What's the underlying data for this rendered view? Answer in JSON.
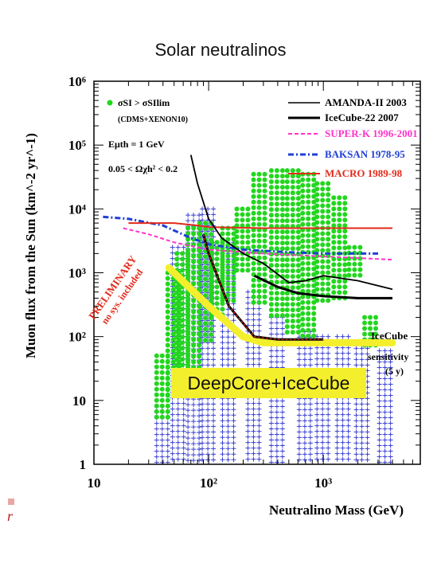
{
  "title": "Solar neutralinos",
  "colors": {
    "amanda": "#000000",
    "icecube22": "#000000",
    "superk": "#ff33cc",
    "baksan": "#1f3fd8",
    "macro": "#e32a1a",
    "model_green": "#22d61e",
    "model_blue": "#3a3fd0",
    "sensitivity": "#f4ef2c",
    "preliminary": "#e32a1a"
  },
  "labels": {
    "condition_1": "σSI > σSIlim",
    "condition_1_sub": "(CDMS+XENON10)",
    "threshold": "Eμth = 1 GeV",
    "omega": "0.05 < Ωχh² < 0.2",
    "preliminary": "PRELIMINARY",
    "no_sys": "no sys. included",
    "icecube_sens_1": "IceCube",
    "icecube_sens_2": "sensitivity",
    "icecube_sens_3": "(5 y)",
    "deepcore": "DeepCore+IceCube",
    "corner_letter": "r"
  },
  "chart_data": {
    "type": "line",
    "title": "Solar neutralinos",
    "xlabel": "Neutralino Mass (GeV)",
    "ylabel": "Muon flux from the Sun (km^-2 yr^-1)",
    "xscale": "log",
    "yscale": "log",
    "xlim": [
      10,
      7000
    ],
    "ylim": [
      1,
      1000000
    ],
    "xticks": [
      "10",
      "10²",
      "10³"
    ],
    "yticks": [
      "1",
      "10",
      "10²",
      "10³",
      "10⁴",
      "10⁵",
      "10⁶"
    ],
    "legend_position": "top-right",
    "series": [
      {
        "name": "AMANDA-II 2003",
        "style": "solid-thin",
        "x": [
          70,
          80,
          100,
          130,
          200,
          300,
          500,
          700,
          1000,
          2000,
          4000
        ],
        "y": [
          70000,
          25000,
          7000,
          3500,
          2000,
          1400,
          700,
          750,
          900,
          750,
          550
        ]
      },
      {
        "name": "IceCube-22 2007",
        "style": "solid-thick",
        "x": [
          250,
          400,
          600,
          1000,
          2000,
          4000
        ],
        "y": [
          900,
          600,
          480,
          430,
          400,
          400
        ]
      },
      {
        "name": "SUPER-K 1996-2001",
        "style": "dashed",
        "x": [
          18,
          30,
          50,
          100,
          300,
          1000,
          4000
        ],
        "y": [
          5000,
          4000,
          3000,
          2300,
          2000,
          1800,
          1600
        ]
      },
      {
        "name": "BAKSAN 1978-95",
        "style": "dash-dot",
        "x": [
          12,
          20,
          40,
          70,
          100,
          200,
          500,
          1000,
          3000
        ],
        "y": [
          7500,
          7000,
          5500,
          3500,
          2800,
          2300,
          2100,
          2000,
          2000
        ]
      },
      {
        "name": "MACRO 1989-98",
        "style": "solid-red",
        "x": [
          20,
          50,
          80,
          100,
          300,
          1000,
          4000
        ],
        "y": [
          6000,
          6000,
          5500,
          5200,
          5000,
          5000,
          5000
        ]
      },
      {
        "name": "IceCube sensitivity (5 y)",
        "style": "thick-yellow",
        "x": [
          45,
          100,
          200,
          300,
          1000,
          4000
        ],
        "y": [
          1200,
          300,
          100,
          80,
          80,
          80
        ]
      },
      {
        "name": "DeepCore+IceCube",
        "style": "red-over-black",
        "x": [
          90,
          100,
          150,
          250,
          400,
          1000
        ],
        "y": [
          4000,
          2000,
          300,
          100,
          90,
          90
        ]
      }
    ],
    "models": {
      "green_bands": [
        {
          "x_center": 40,
          "y_low": 5,
          "y_high": 50
        },
        {
          "x_center": 50,
          "y_low": 10,
          "y_high": 1000
        },
        {
          "x_center": 60,
          "y_low": 20,
          "y_high": 2000
        },
        {
          "x_center": 75,
          "y_low": 30,
          "y_high": 5000
        },
        {
          "x_center": 95,
          "y_low": 80,
          "y_high": 6000
        },
        {
          "x_center": 120,
          "y_low": 200,
          "y_high": 3000
        },
        {
          "x_center": 150,
          "y_low": 300,
          "y_high": 5000
        },
        {
          "x_center": 200,
          "y_low": 1000,
          "y_high": 10000
        },
        {
          "x_center": 280,
          "y_low": 300,
          "y_high": 35000
        },
        {
          "x_center": 400,
          "y_low": 200,
          "y_high": 40000
        },
        {
          "x_center": 550,
          "y_low": 100,
          "y_high": 40000
        },
        {
          "x_center": 750,
          "y_low": 100,
          "y_high": 35000
        },
        {
          "x_center": 1000,
          "y_low": 300,
          "y_high": 25000
        },
        {
          "x_center": 1400,
          "y_low": 400,
          "y_high": 15000
        },
        {
          "x_center": 1900,
          "y_low": 800,
          "y_high": 2500
        },
        {
          "x_center": 2600,
          "y_low": 70,
          "y_high": 200
        }
      ],
      "blue_bands": [
        {
          "x_center": 40,
          "y_low": 1,
          "y_high": 8
        },
        {
          "x_center": 55,
          "y_low": 1,
          "y_high": 2500
        },
        {
          "x_center": 75,
          "y_low": 1,
          "y_high": 8000
        },
        {
          "x_center": 100,
          "y_low": 1,
          "y_high": 10000
        },
        {
          "x_center": 150,
          "y_low": 1,
          "y_high": 3000
        },
        {
          "x_center": 250,
          "y_low": 1,
          "y_high": 500
        },
        {
          "x_center": 400,
          "y_low": 1,
          "y_high": 200
        },
        {
          "x_center": 700,
          "y_low": 1,
          "y_high": 120
        },
        {
          "x_center": 1000,
          "y_low": 1,
          "y_high": 100
        },
        {
          "x_center": 1500,
          "y_low": 1,
          "y_high": 100
        },
        {
          "x_center": 2200,
          "y_low": 1,
          "y_high": 80
        },
        {
          "x_center": 3500,
          "y_low": 1,
          "y_high": 60
        }
      ]
    }
  }
}
